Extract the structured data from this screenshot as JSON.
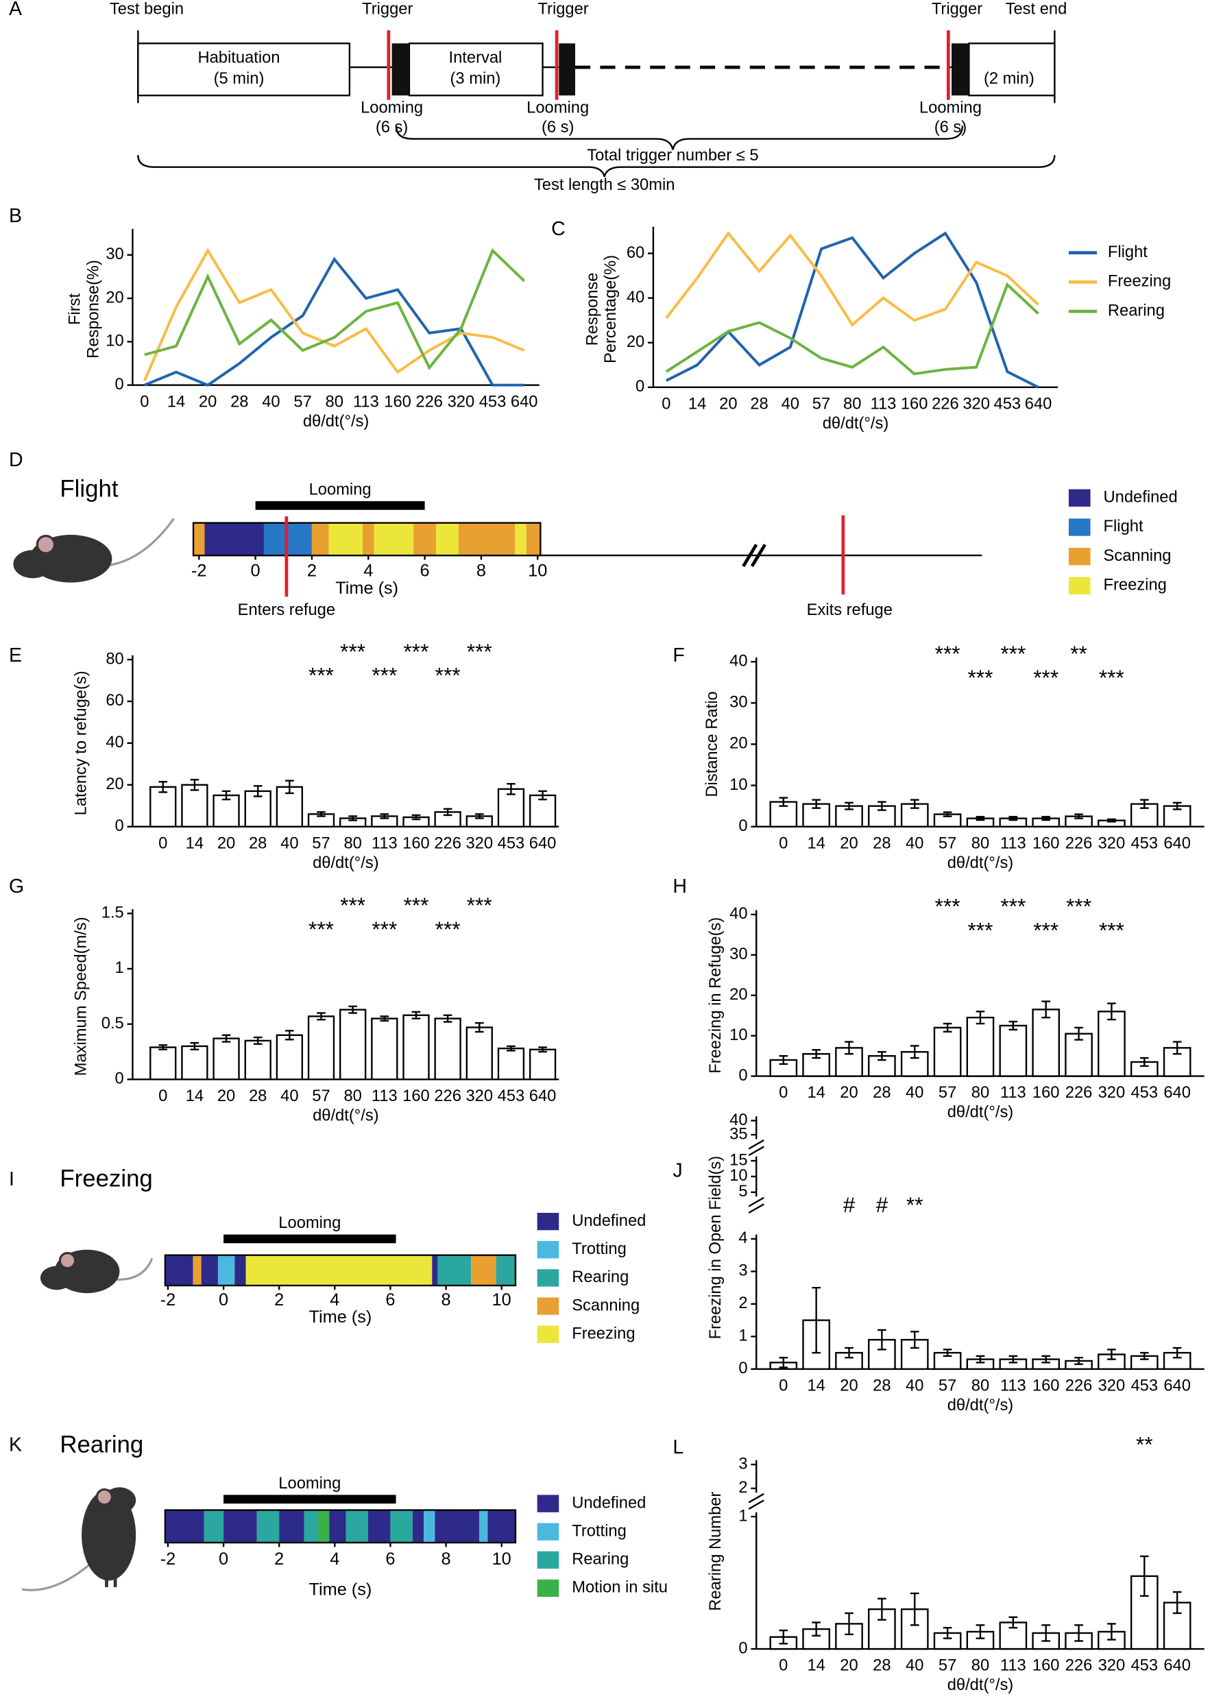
{
  "diagram": {
    "panel": "A",
    "test_begin": "Test begin",
    "triggers": [
      "Trigger",
      "Trigger",
      "Trigger"
    ],
    "test_end": "Test end",
    "habituation": [
      "Habituation",
      "(5 min)"
    ],
    "interval": [
      "Interval",
      "(3 min)"
    ],
    "final": "(2 min)",
    "looming": [
      [
        "Looming",
        "(6 s)"
      ],
      [
        "Looming",
        "(6 s)"
      ],
      [
        "Looming",
        "(6 s)"
      ]
    ],
    "total": "Total trigger number ≤ 5",
    "length": "Test length ≤ 30min"
  },
  "chart_data": [
    {
      "type": "line",
      "panel": "B",
      "ylabel": [
        "First",
        "Response(%)"
      ],
      "xlabel": "dθ/dt(°/s)",
      "categories": [
        "0",
        "14",
        "20",
        "28",
        "40",
        "57",
        "80",
        "113",
        "160",
        "226",
        "320",
        "453",
        "640"
      ],
      "ylim": [
        0,
        35
      ],
      "yticks": [
        0,
        10,
        20,
        30
      ],
      "series": [
        {
          "color": "#1f64ad",
          "values": [
            0,
            3,
            0,
            5,
            11,
            16,
            29,
            20,
            22,
            12,
            13,
            0,
            0
          ]
        },
        {
          "color": "#f7bd45",
          "values": [
            1,
            18,
            31,
            19,
            22,
            12,
            9,
            13,
            3,
            8,
            12,
            11,
            8
          ]
        },
        {
          "color": "#6db33f",
          "values": [
            7,
            9,
            25,
            9.5,
            15,
            8,
            11,
            17,
            19,
            4,
            13,
            31,
            24
          ]
        }
      ]
    },
    {
      "type": "line",
      "panel": "C",
      "ylabel": [
        "Response",
        "Percentage(%)"
      ],
      "xlabel": "dθ/dt(°/s)",
      "categories": [
        "0",
        "14",
        "20",
        "28",
        "40",
        "57",
        "80",
        "113",
        "160",
        "226",
        "320",
        "453",
        "640"
      ],
      "ylim": [
        0,
        70
      ],
      "yticks": [
        0,
        20,
        40,
        60
      ],
      "series": [
        {
          "name": "Flight",
          "color": "#1f64ad",
          "values": [
            3,
            10,
            25,
            10,
            18,
            62,
            67,
            49,
            60,
            69,
            47,
            7,
            0
          ]
        },
        {
          "name": "Freezing",
          "color": "#f7bd45",
          "values": [
            31,
            49,
            69,
            52,
            68,
            50,
            28,
            40,
            30,
            35,
            56,
            50,
            37
          ]
        },
        {
          "name": "Rearing",
          "color": "#6db33f",
          "values": [
            7,
            16,
            25,
            29,
            22,
            13,
            9,
            18,
            6,
            8,
            9,
            46,
            33
          ]
        }
      ]
    },
    {
      "type": "ethogram",
      "panel": "D",
      "title": "Flight",
      "looming_label": "Looming",
      "looming": [
        0,
        6
      ],
      "xlim": [
        -2.2,
        10.1
      ],
      "xticks": [
        -2,
        0,
        2,
        4,
        6,
        8,
        10
      ],
      "xlabel": "Time (s)",
      "legend": [
        {
          "name": "Undefined",
          "color": "#2e2a8a"
        },
        {
          "name": "Flight",
          "color": "#2878c8"
        },
        {
          "name": "Scanning",
          "color": "#e8a030"
        },
        {
          "name": "Freezing",
          "color": "#ece63a"
        }
      ],
      "segments": [
        {
          "start": -2.2,
          "end": -1.8,
          "state": "Scanning"
        },
        {
          "start": -1.8,
          "end": 0.3,
          "state": "Undefined"
        },
        {
          "start": 0.3,
          "end": 2,
          "state": "Flight"
        },
        {
          "start": 2,
          "end": 2.6,
          "state": "Scanning"
        },
        {
          "start": 2.6,
          "end": 3.8,
          "state": "Freezing"
        },
        {
          "start": 3.8,
          "end": 4.2,
          "state": "Scanning"
        },
        {
          "start": 4.2,
          "end": 5.6,
          "state": "Freezing"
        },
        {
          "start": 5.6,
          "end": 6.4,
          "state": "Scanning"
        },
        {
          "start": 6.4,
          "end": 7.2,
          "state": "Freezing"
        },
        {
          "start": 7.2,
          "end": 9.2,
          "state": "Scanning"
        },
        {
          "start": 9.2,
          "end": 9.6,
          "state": "Freezing"
        },
        {
          "start": 9.6,
          "end": 10.1,
          "state": "Scanning"
        }
      ],
      "markers": [
        {
          "x": 1.1,
          "label": "Enters refuge"
        }
      ],
      "exit_label": "Exits refuge"
    },
    {
      "type": "bar",
      "panel": "E",
      "ylabel": [
        "Latency to refuge(s)"
      ],
      "xlabel": "dθ/dt(°/s)",
      "categories": [
        "0",
        "14",
        "20",
        "28",
        "40",
        "57",
        "80",
        "113",
        "160",
        "226",
        "320",
        "453",
        "640"
      ],
      "color": "#ffffff",
      "ylim": [
        0,
        80
      ],
      "yticks": [
        0,
        20,
        40,
        60,
        80
      ],
      "values": [
        19,
        20,
        15,
        17,
        19,
        6,
        4,
        5,
        4.5,
        7,
        5,
        18,
        15
      ],
      "errors": [
        2.5,
        2.5,
        2,
        2.5,
        3,
        1,
        1,
        1,
        1,
        1.5,
        1,
        2.5,
        2
      ],
      "annotations": [
        null,
        null,
        null,
        null,
        null,
        "***",
        "***",
        "***",
        "***",
        "***",
        "***",
        null,
        null
      ]
    },
    {
      "type": "bar",
      "panel": "F",
      "ylabel": [
        "Distance Ratio"
      ],
      "xlabel": "dθ/dt(°/s)",
      "categories": [
        "0",
        "14",
        "20",
        "28",
        "40",
        "57",
        "80",
        "113",
        "160",
        "226",
        "320",
        "453",
        "640"
      ],
      "color": "#ffffff",
      "ylim": [
        0,
        40
      ],
      "yticks": [
        0,
        10,
        20,
        30,
        40
      ],
      "values": [
        6,
        5.5,
        5,
        5,
        5.5,
        3,
        2,
        2,
        2,
        2.5,
        1.5,
        5.5,
        5
      ],
      "errors": [
        1,
        1,
        0.8,
        1,
        1,
        0.5,
        0.4,
        0.4,
        0.4,
        0.5,
        0.3,
        1,
        0.8
      ],
      "annotations": [
        null,
        null,
        null,
        null,
        null,
        "***",
        "***",
        "***",
        "***",
        "**",
        "***",
        null,
        null
      ]
    },
    {
      "type": "bar",
      "panel": "G",
      "ylabel": [
        "Maximum Speed(m/s)"
      ],
      "xlabel": "dθ/dt(°/s)",
      "categories": [
        "0",
        "14",
        "20",
        "28",
        "40",
        "57",
        "80",
        "113",
        "160",
        "226",
        "320",
        "453",
        "640"
      ],
      "color": "#ffffff",
      "ylim": [
        0,
        1.5
      ],
      "yticks": [
        0,
        0.5,
        1,
        1.5
      ],
      "values": [
        0.29,
        0.3,
        0.37,
        0.35,
        0.4,
        0.57,
        0.63,
        0.55,
        0.58,
        0.55,
        0.47,
        0.28,
        0.27
      ],
      "errors": [
        0.02,
        0.03,
        0.03,
        0.03,
        0.04,
        0.03,
        0.03,
        0.02,
        0.03,
        0.03,
        0.04,
        0.02,
        0.02
      ],
      "annotations": [
        null,
        null,
        null,
        null,
        null,
        "***",
        "***",
        "***",
        "***",
        "***",
        "***",
        null,
        null
      ]
    },
    {
      "type": "bar",
      "panel": "H",
      "ylabel": [
        "Freezing in Refuge(s)"
      ],
      "xlabel": "dθ/dt(°/s)",
      "categories": [
        "0",
        "14",
        "20",
        "28",
        "40",
        "57",
        "80",
        "113",
        "160",
        "226",
        "320",
        "453",
        "640"
      ],
      "color": "#ffffff",
      "ylim": [
        0,
        40
      ],
      "yticks": [
        0,
        10,
        20,
        30,
        40
      ],
      "values": [
        4,
        5.5,
        7,
        5,
        6,
        12,
        14.5,
        12.5,
        16.5,
        10.5,
        16,
        3.5,
        7
      ],
      "errors": [
        1,
        1,
        1.5,
        1,
        1.5,
        1,
        1.5,
        1,
        2,
        1.5,
        2,
        1,
        1.5
      ],
      "annotations": [
        null,
        null,
        null,
        null,
        null,
        "***",
        "***",
        "***",
        "***",
        "***",
        "***",
        null,
        null
      ]
    },
    {
      "type": "ethogram",
      "panel": "I",
      "title": "Freezing",
      "looming_label": "Looming",
      "looming": [
        0,
        6.2
      ],
      "xlim": [
        -2.1,
        10.5
      ],
      "xticks": [
        -2,
        0,
        2,
        4,
        6,
        8,
        10
      ],
      "xlabel": "Time (s)",
      "legend": [
        {
          "name": "Undefined",
          "color": "#2e2a8a"
        },
        {
          "name": "Trotting",
          "color": "#4cb8e0"
        },
        {
          "name": "Rearing",
          "color": "#2aa8a0"
        },
        {
          "name": "Scanning",
          "color": "#e8a030"
        },
        {
          "name": "Freezing",
          "color": "#ece63a"
        }
      ],
      "segments": [
        {
          "start": -2.1,
          "end": -1.1,
          "state": "Undefined"
        },
        {
          "start": -1.1,
          "end": -0.8,
          "state": "Scanning"
        },
        {
          "start": -0.8,
          "end": -0.2,
          "state": "Undefined"
        },
        {
          "start": -0.2,
          "end": 0.4,
          "state": "Trotting"
        },
        {
          "start": 0.4,
          "end": 0.8,
          "state": "Undefined"
        },
        {
          "start": 0.8,
          "end": 6.8,
          "state": "Freezing"
        },
        {
          "start": 6.8,
          "end": 7.5,
          "state": "Freezing"
        },
        {
          "start": 7.5,
          "end": 7.7,
          "state": "Undefined"
        },
        {
          "start": 7.7,
          "end": 8.9,
          "state": "Rearing"
        },
        {
          "start": 8.9,
          "end": 9.8,
          "state": "Scanning"
        },
        {
          "start": 9.8,
          "end": 10.5,
          "state": "Rearing"
        }
      ]
    },
    {
      "type": "bar",
      "panel": "J",
      "ylabel": [
        "Freezing in Open Field(s)"
      ],
      "xlabel": "dθ/dt(°/s)",
      "categories": [
        "0",
        "14",
        "20",
        "28",
        "40",
        "57",
        "80",
        "113",
        "160",
        "226",
        "320",
        "453",
        "640"
      ],
      "color": "#ffffff",
      "ylim": [
        0,
        4
      ],
      "yticks": [
        0,
        1,
        2,
        3,
        4
      ],
      "ylim2": [
        5,
        15
      ],
      "yticks2": [
        5,
        10,
        15
      ],
      "ylim3": [
        35,
        40
      ],
      "yticks3": [
        35,
        40
      ],
      "values": [
        0.2,
        1.5,
        0.5,
        0.9,
        0.9,
        0.5,
        0.3,
        0.3,
        0.3,
        0.25,
        0.45,
        0.4,
        0.5
      ],
      "errors": [
        0.15,
        1,
        0.15,
        0.3,
        0.25,
        0.1,
        0.1,
        0.1,
        0.1,
        0.1,
        0.15,
        0.1,
        0.15
      ],
      "annotations": [
        null,
        null,
        "#",
        "#",
        "**",
        null,
        null,
        null,
        null,
        null,
        null,
        null,
        null
      ]
    },
    {
      "type": "ethogram",
      "panel": "K",
      "title": "Rearing",
      "looming_label": "Looming",
      "looming": [
        0,
        6.2
      ],
      "xlim": [
        -2.1,
        10.5
      ],
      "xticks": [
        -2,
        0,
        2,
        4,
        6,
        8,
        10
      ],
      "xlabel": "Time (s)",
      "legend": [
        {
          "name": "Undefined",
          "color": "#2e2a8a"
        },
        {
          "name": "Trotting",
          "color": "#4cb8e0"
        },
        {
          "name": "Rearing",
          "color": "#2aa8a0"
        },
        {
          "name": "Motion in situ",
          "color": "#3cb048"
        }
      ],
      "segments": [
        {
          "start": -2.1,
          "end": -0.7,
          "state": "Undefined"
        },
        {
          "start": -0.7,
          "end": 0,
          "state": "Rearing"
        },
        {
          "start": 0,
          "end": 1.2,
          "state": "Undefined"
        },
        {
          "start": 1.2,
          "end": 2,
          "state": "Rearing"
        },
        {
          "start": 2,
          "end": 2.9,
          "state": "Undefined"
        },
        {
          "start": 2.9,
          "end": 3.4,
          "state": "Rearing"
        },
        {
          "start": 3.4,
          "end": 3.8,
          "state": "Motion in situ"
        },
        {
          "start": 3.8,
          "end": 4.4,
          "state": "Undefined"
        },
        {
          "start": 4.4,
          "end": 5.2,
          "state": "Rearing"
        },
        {
          "start": 5.2,
          "end": 6,
          "state": "Undefined"
        },
        {
          "start": 6,
          "end": 6.8,
          "state": "Rearing"
        },
        {
          "start": 6.8,
          "end": 7.2,
          "state": "Undefined"
        },
        {
          "start": 7.2,
          "end": 7.6,
          "state": "Trotting"
        },
        {
          "start": 7.6,
          "end": 9.2,
          "state": "Undefined"
        },
        {
          "start": 9.2,
          "end": 9.5,
          "state": "Trotting"
        },
        {
          "start": 9.5,
          "end": 10.5,
          "state": "Undefined"
        }
      ]
    },
    {
      "type": "bar",
      "panel": "L",
      "ylabel": [
        "Rearing Number"
      ],
      "xlabel": "dθ/dt(°/s)",
      "categories": [
        "0",
        "14",
        "20",
        "28",
        "40",
        "57",
        "80",
        "113",
        "160",
        "226",
        "320",
        "453",
        "640"
      ],
      "color": "#ffffff",
      "ylim": [
        0,
        1
      ],
      "yticks": [
        0,
        1
      ],
      "ylim2": [
        2,
        3
      ],
      "yticks2": [
        2,
        3
      ],
      "values": [
        0.09,
        0.15,
        0.19,
        0.3,
        0.3,
        0.12,
        0.13,
        0.2,
        0.12,
        0.12,
        0.13,
        0.55,
        0.35
      ],
      "errors": [
        0.05,
        0.05,
        0.08,
        0.08,
        0.12,
        0.04,
        0.05,
        0.04,
        0.06,
        0.06,
        0.06,
        0.15,
        0.08
      ],
      "annotations": [
        null,
        null,
        null,
        null,
        null,
        null,
        null,
        null,
        null,
        null,
        null,
        "**",
        null
      ]
    }
  ]
}
